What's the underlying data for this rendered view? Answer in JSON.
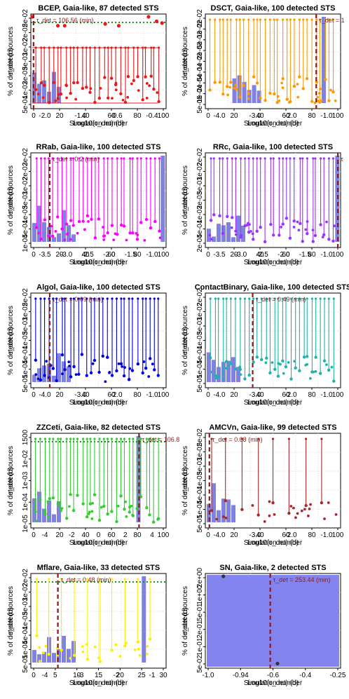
{
  "chart_data": [
    {
      "type": "bar",
      "title": "BCEP, Gaia-like, 87 detected STS",
      "xlabel": "Simulation number",
      "xlabel_overlap": "Log10(τ_det) (d)",
      "ylabel": "% of detected sources",
      "ylabel_overlap": "τ_det (d)",
      "color": "#e41a1c",
      "annotation": "τ_det = 106.56 (min)",
      "xlim": [
        0,
        100
      ],
      "x_ticks": [
        "0",
        "20",
        "40",
        "60",
        "80",
        "100"
      ],
      "x_ticks_overlap": [
        "-2.0",
        "-1.0",
        "-0.6",
        "-0.4"
      ],
      "y_ticks": [
        "5e-04",
        "1e-03",
        "2e-03",
        "5e-03",
        "1e-02",
        "2e-02",
        "5e-02"
      ],
      "markers": [
        {
          "x": 1,
          "y": 1,
          "value": "100"
        },
        {
          "x": 20,
          "y": 0.9,
          "value": "95"
        },
        {
          "x": 25,
          "y": 0.9,
          "value": "95"
        },
        {
          "x": 55,
          "y": 0.92,
          "value": "97"
        },
        {
          "x": 65,
          "y": 0.9,
          "value": "95"
        },
        {
          "x": 87,
          "y": 1,
          "value": "100"
        },
        {
          "x": 93,
          "y": 0.95,
          "value": "98"
        },
        {
          "x": 97,
          "y": 0.93,
          "value": "96"
        }
      ]
    },
    {
      "type": "bar",
      "title": "DSCT, Gaia-like, 100 detected STS",
      "xlabel": "Simulation number",
      "xlabel_overlap": "Log10(τ_det) (d)",
      "ylabel": "% of detected sources",
      "ylabel_overlap": "τ_det (d)",
      "color": "#ff9900",
      "annotation": "τ_det = 1",
      "xlim": [
        0,
        100
      ],
      "x_ticks": [
        "0",
        "20",
        "40",
        "60",
        "80",
        "100"
      ],
      "x_ticks_overlap": [
        "-4.0",
        "-3.0",
        "-2.0",
        "-1.0"
      ],
      "y_ticks": [
        "5e-05",
        "1e-04",
        "2e-04",
        "5e-04",
        "1e-03",
        "2e-03",
        "5e-03",
        "1e-02",
        "2e-02"
      ]
    },
    {
      "type": "bar",
      "title": "RRab, Gaia-like, 100 detected STS",
      "xlabel": "Simulation number",
      "xlabel_overlap": "Log10(τ_det) (d)",
      "ylabel": "% of detected sources",
      "ylabel_overlap": "τ_det (d)",
      "color": "#ff00ff",
      "annotation": "τ_det = 0.2 (min)",
      "xlim": [
        0,
        100
      ],
      "x_ticks": [
        "0",
        "20",
        "40",
        "60",
        "80",
        "100"
      ],
      "x_ticks_overlap": [
        "-3.5",
        "-3.0",
        "-2.5",
        "-2.0",
        "-1.5",
        "-1.0"
      ],
      "y_ticks": [
        "1e-04",
        "5e-04",
        "1e-03",
        "5e-03",
        "1e-02",
        "2e-02",
        "3e-02"
      ]
    },
    {
      "type": "bar",
      "title": "RRc, Gaia-like, 100 detected STS",
      "xlabel": "Simulation number",
      "xlabel_overlap": "Log10(τ_det) (d)",
      "ylabel": "% of detected sources",
      "ylabel_overlap": "τ_det (d)",
      "color": "#9933ff",
      "annotation": "τ",
      "xlim": [
        0,
        100
      ],
      "x_ticks": [
        "0",
        "20",
        "40",
        "60",
        "80",
        "100"
      ],
      "x_ticks_overlap": [
        "-3.5",
        "-3.0",
        "-2.5",
        "-2.0",
        "-1.5",
        "-1.0"
      ],
      "y_ticks": [
        "2e-04",
        "5e-04",
        "1e-03",
        "2e-03",
        "5e-03",
        "1e-02",
        "2e-02"
      ]
    },
    {
      "type": "bar",
      "title": "Algol, Gaia-like, 100 detected STS",
      "xlabel": "Simulation number",
      "xlabel_overlap": "Log10(τ_det) (d)",
      "ylabel": "% of detected sources",
      "ylabel_overlap": "τ_det (d)",
      "color": "#0000dd",
      "annotation": "τ_det = 0.09 (min)",
      "xlim": [
        0,
        100
      ],
      "x_ticks": [
        "0",
        "20",
        "40",
        "60",
        "80",
        "100"
      ],
      "x_ticks_overlap": [
        "-4.0",
        "-3.0",
        "-2.0",
        "-1.0"
      ],
      "y_ticks": [
        "5e-05",
        "1e-04",
        "5e-04",
        "1e-03",
        "5e-03",
        "1e-02",
        "5e-02"
      ]
    },
    {
      "type": "bar",
      "title": "ContactBinary, Gaia-like, 100 detected STS",
      "xlabel": "Simulation number",
      "xlabel_overlap": "Log10(τ_det) (d)",
      "ylabel": "% of detected sources",
      "ylabel_overlap": "τ_det (d)",
      "color": "#20b2aa",
      "annotation": "τ_det = 0.49 (min)",
      "xlim": [
        0,
        100
      ],
      "x_ticks": [
        "0",
        "20",
        "40",
        "60",
        "80",
        "100"
      ],
      "x_ticks_overlap": [
        "-4.0",
        "-3.0",
        "-2.0",
        "-1.0"
      ],
      "y_ticks": [
        "5e-05",
        "1e-04",
        "5e-04",
        "1e-03",
        "5e-03",
        "1e-02",
        "2e-02"
      ]
    },
    {
      "type": "bar",
      "title": "ZZCeti, Gaia-like, 82 detected STS",
      "xlabel": "Simulation number",
      "xlabel_overlap": "Log10(τ_det) (d)",
      "ylabel": "% of detected sources",
      "ylabel_overlap": "τ_det (d)",
      "color": "#33cc33",
      "annotation": "τ_det = 106.8",
      "xlim": [
        0,
        100
      ],
      "x_ticks": [
        "0",
        "20",
        "40",
        "60",
        "80",
        "100"
      ],
      "x_ticks_overlap": [
        "-4",
        "-2",
        "0",
        "2",
        "4"
      ],
      "y_ticks": [
        "1e-05",
        "1e-04",
        "1e-03",
        "1e-02",
        "1500"
      ]
    },
    {
      "type": "bar",
      "title": "AMCVn, Gaia-like, 99 detected STS",
      "xlabel": "Simulation number",
      "xlabel_overlap": "Log10(τ_det) (d)",
      "ylabel": "% of detected sources",
      "ylabel_overlap": "τ_det (d)",
      "color": "#a52a2a",
      "annotation": "τ_det = 0.08 (min)",
      "xlim": [
        0,
        100
      ],
      "x_ticks": [
        "0",
        "20",
        "40",
        "60",
        "80",
        "100"
      ],
      "x_ticks_overlap": [
        "-4.0",
        "-3.0",
        "-2.0",
        "-1.0"
      ],
      "y_ticks": [
        "5e-05",
        "1e-04",
        "5e-04",
        "1e-03",
        "5e-03",
        "1e-02",
        "5e-02"
      ]
    },
    {
      "type": "bar",
      "title": "Mflare, Gaia-like, 33 detected STS",
      "xlabel": "Simulation number",
      "xlabel_overlap": "Log10(τ_det) (d)",
      "ylabel": "% of detected sources",
      "ylabel_overlap": "τ_det (d)",
      "color": "#ffee00",
      "annotation": "τ_det = 0.48 (min)",
      "xlim": [
        0,
        35
      ],
      "x_ticks": [
        "0",
        "5",
        "10",
        "15",
        "20",
        "25",
        "30"
      ],
      "x_ticks_overlap": [
        "-4",
        "-3",
        "-2",
        "-1"
      ],
      "y_ticks": [
        "5e-05",
        "1e-04",
        "5e-04",
        "1e-03",
        "5e-03",
        "1e-02",
        "2e-02"
      ]
    },
    {
      "type": "bar",
      "title": "SN, Gaia-like, 2 detected STS",
      "xlabel": "Simulation number",
      "xlabel_overlap": "Log10(τ_det) (d)",
      "ylabel": "% of detected sources",
      "ylabel_overlap": "τ_det (d)",
      "color": "#333333",
      "annotation": "τ_det = 253.44 (min)",
      "xlim": [
        -1.0,
        -0.25
      ],
      "x_ticks": [
        "-1.0",
        "-0.94",
        "-0.6",
        "-0.4",
        "-0.25"
      ],
      "y_ticks": [
        "5e-02",
        "1e-01",
        "2e-01",
        "5e-01",
        "1e+00",
        "2e+00"
      ],
      "markers": [
        {
          "x": -0.9,
          "y": 1,
          "value": "2"
        },
        {
          "x": -0.6,
          "y": 0.02,
          "value": "1"
        }
      ]
    }
  ]
}
